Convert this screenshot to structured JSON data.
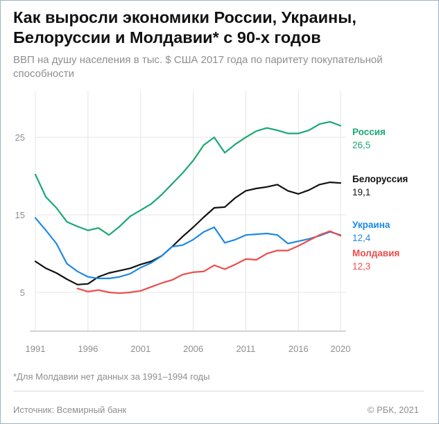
{
  "title": "Как выросли экономики России, Украины, Белоруссии и Молдавии* с 90-х годов",
  "subtitle": "ВВП на душу населения в тыс. $ США 2017 года по паритету покупательной способности",
  "footnote": "*Для Молдавии нет данных за 1991–1994 годы",
  "source": "Источник: Всемирный банк",
  "copyright": "© РБК, 2021",
  "chart_data": {
    "type": "line",
    "x": [
      1991,
      1992,
      1993,
      1994,
      1995,
      1996,
      1997,
      1998,
      1999,
      2000,
      2001,
      2002,
      2003,
      2004,
      2005,
      2006,
      2007,
      2008,
      2009,
      2010,
      2011,
      2012,
      2013,
      2014,
      2015,
      2016,
      2017,
      2018,
      2019,
      2020
    ],
    "xticks": [
      "1991",
      "1996",
      "2001",
      "2006",
      "2011",
      "2016",
      "2020"
    ],
    "yticks": [
      "5",
      "15",
      "25"
    ],
    "ylim": [
      0,
      31
    ],
    "xlim": [
      1991,
      2020
    ],
    "grid": true,
    "legend": "end-labels-right",
    "series": [
      {
        "name": "Россия",
        "end_label": "26,5",
        "color": "#1aa772",
        "values": [
          20.2,
          17.3,
          15.9,
          14.1,
          13.5,
          13.0,
          13.3,
          12.4,
          13.5,
          14.8,
          15.6,
          16.4,
          17.6,
          19.0,
          20.4,
          22.0,
          24.0,
          25.0,
          23.0,
          24.1,
          25.0,
          25.8,
          26.2,
          25.9,
          25.5,
          25.5,
          25.9,
          26.7,
          27.0,
          26.5
        ]
      },
      {
        "name": "Белоруссия",
        "end_label": "19,1",
        "color": "#111111",
        "values": [
          9.0,
          8.1,
          7.5,
          6.7,
          6.0,
          6.1,
          7.0,
          7.5,
          7.8,
          8.1,
          8.6,
          9.0,
          9.7,
          10.9,
          12.2,
          13.4,
          14.7,
          15.9,
          16.0,
          17.2,
          18.1,
          18.4,
          18.6,
          18.9,
          18.1,
          17.7,
          18.2,
          18.9,
          19.2,
          19.1
        ]
      },
      {
        "name": "Украина",
        "end_label": "12,4",
        "color": "#1e88e5",
        "values": [
          14.6,
          13.0,
          11.3,
          8.7,
          7.7,
          7.0,
          6.8,
          6.8,
          7.0,
          7.4,
          8.2,
          8.8,
          9.7,
          10.9,
          11.1,
          11.8,
          12.8,
          13.4,
          11.4,
          11.8,
          12.4,
          12.5,
          12.6,
          12.4,
          11.3,
          11.6,
          11.9,
          12.3,
          12.8,
          12.4
        ]
      },
      {
        "name": "Молдавия",
        "end_label": "12,3",
        "color": "#ee4b4b",
        "values": [
          null,
          null,
          null,
          null,
          5.5,
          5.1,
          5.3,
          5.0,
          4.9,
          5.0,
          5.2,
          5.7,
          6.2,
          6.6,
          7.3,
          7.6,
          7.7,
          8.5,
          8.0,
          8.6,
          9.3,
          9.2,
          10.0,
          10.4,
          10.4,
          11.0,
          11.7,
          12.4,
          12.9,
          12.3
        ]
      }
    ]
  }
}
